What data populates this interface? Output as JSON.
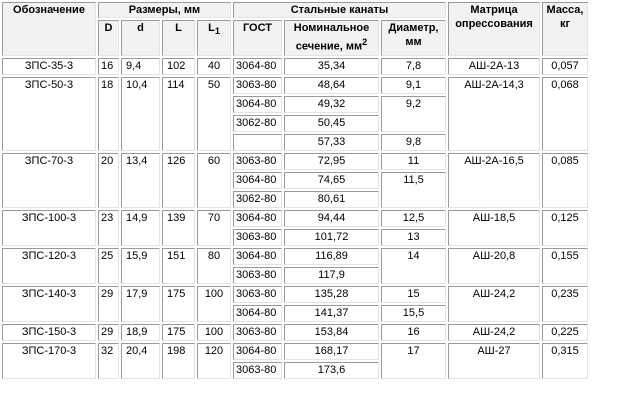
{
  "headers": {
    "designation": "Обозначение",
    "dimensions": "Размеры, мм",
    "steel_ropes": "Стальные канаты",
    "die": "Матрица опрессования",
    "mass": "Масса, кг",
    "d_upper": "D",
    "d_lower": "d",
    "l": "L",
    "l1_base": "L",
    "l1_sub": "1",
    "gost": "ГОСТ",
    "section_prefix": "Номинальное сечение, мм",
    "section_sup": "2",
    "diameter": "Диаметр, мм"
  },
  "products": [
    {
      "designation": "ЗПС-35-3",
      "D": "16",
      "d": "9,4",
      "L": "102",
      "L1": "40",
      "die": "АШ-2А-13",
      "mass": "0,057",
      "ropes": [
        {
          "gost": "3064-80",
          "section": "35,34",
          "diameter": "7,8",
          "span": 1
        }
      ]
    },
    {
      "designation": "ЗПС-50-3",
      "D": "18",
      "d": "10,4",
      "L": "114",
      "L1": "50",
      "die": "АШ-2А-14,3",
      "mass": "0,068",
      "ropes": [
        {
          "gost": "3063-80",
          "section": "48,64",
          "diameter": "9,1",
          "span": 1
        },
        {
          "gost": "3064-80",
          "section": "49,32",
          "diameter": "9,2",
          "span": 2
        },
        {
          "gost": "3062-80",
          "section": "50,45",
          "diameter": null,
          "span": 0
        },
        {
          "gost": "",
          "section": "57,33",
          "diameter": "9,8",
          "span": 1
        }
      ]
    },
    {
      "designation": "ЗПС-70-3",
      "D": "20",
      "d": "13,4",
      "L": "126",
      "L1": "60",
      "die": "АШ-2А-16,5",
      "mass": "0,085",
      "ropes": [
        {
          "gost": "3063-80",
          "section": "72,95",
          "diameter": "11",
          "span": 1
        },
        {
          "gost": "3064-80",
          "section": "74,65",
          "diameter": "11,5",
          "span": 2
        },
        {
          "gost": "3062-80",
          "section": "80,61",
          "diameter": null,
          "span": 0
        }
      ]
    },
    {
      "designation": "ЗПС-100-3",
      "D": "23",
      "d": "14,9",
      "L": "139",
      "L1": "70",
      "die": "АШ-18,5",
      "mass": "0,125",
      "ropes": [
        {
          "gost": "3064-80",
          "section": "94,44",
          "diameter": "12,5",
          "span": 1
        },
        {
          "gost": "3063-80",
          "section": "101,72",
          "diameter": "13",
          "span": 1
        }
      ]
    },
    {
      "designation": "ЗПС-120-3",
      "D": "25",
      "d": "15,9",
      "L": "151",
      "L1": "80",
      "die": "АШ-20,8",
      "mass": "0,155",
      "ropes": [
        {
          "gost": "3064-80",
          "section": "116,89",
          "diameter": "14",
          "span": 2
        },
        {
          "gost": "3063-80",
          "section": "117,9",
          "diameter": null,
          "span": 0
        }
      ]
    },
    {
      "designation": "ЗПС-140-3",
      "D": "29",
      "d": "17,9",
      "L": "175",
      "L1": "100",
      "die": "АШ-24,2",
      "mass": "0,235",
      "ropes": [
        {
          "gost": "3063-80",
          "section": "135,28",
          "diameter": "15",
          "span": 1
        },
        {
          "gost": "3064-80",
          "section": "141,37",
          "diameter": "15,5",
          "span": 1
        }
      ]
    },
    {
      "designation": "ЗПС-150-3",
      "D": "29",
      "d": "18,9",
      "L": "175",
      "L1": "100",
      "die": "АШ-24,2",
      "mass": "0,225",
      "ropes": [
        {
          "gost": "3063-80",
          "section": "153,84",
          "diameter": "16",
          "span": 1
        }
      ]
    },
    {
      "designation": "ЗПС-170-3",
      "D": "32",
      "d": "20,4",
      "L": "198",
      "L1": "120",
      "die": "АШ-27",
      "mass": "0,315",
      "ropes": [
        {
          "gost": "3064-80",
          "section": "168,17",
          "diameter": "17",
          "span": 2
        },
        {
          "gost": "3063-80",
          "section": "173,6",
          "diameter": null,
          "span": 0
        }
      ]
    }
  ]
}
